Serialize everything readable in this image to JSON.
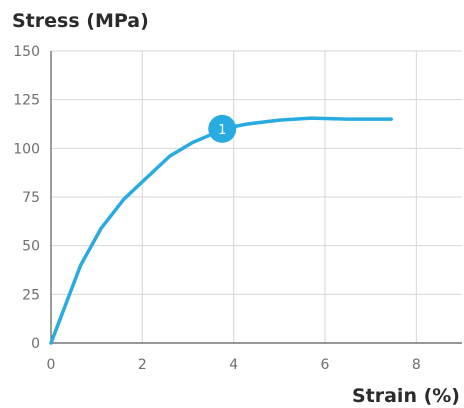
{
  "chart_data": {
    "type": "line",
    "ylabel": "Stress (MPa)",
    "xlabel": "Strain (%)",
    "xlim": [
      0,
      9
    ],
    "ylim": [
      0,
      150
    ],
    "x_ticks": [
      0,
      2,
      4,
      6,
      8
    ],
    "y_ticks": [
      0,
      25,
      50,
      75,
      100,
      125,
      150
    ],
    "grid": true,
    "colors": {
      "series": "#29ABE2",
      "marker_text": "#FFFFFF"
    },
    "series": [
      {
        "x": [
          0,
          0.65,
          1.1,
          1.6,
          2.1,
          2.6,
          3.1,
          3.5,
          3.75,
          4.3,
          5.0,
          5.7,
          6.5,
          7.45
        ],
        "y": [
          0,
          40,
          59,
          74,
          85,
          96,
          103,
          107,
          110,
          112.5,
          114.5,
          115.5,
          115,
          115
        ]
      }
    ],
    "annotations": [
      {
        "label": "1",
        "x": 3.75,
        "y": 110
      }
    ]
  }
}
